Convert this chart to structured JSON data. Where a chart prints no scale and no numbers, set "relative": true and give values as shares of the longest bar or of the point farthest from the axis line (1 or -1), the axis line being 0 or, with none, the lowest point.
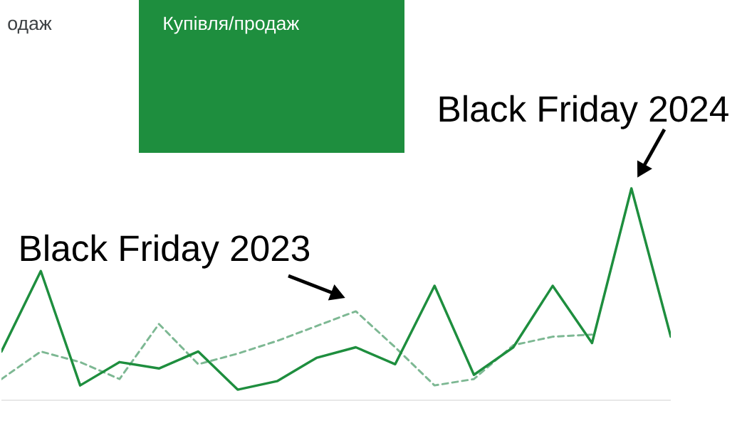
{
  "chart_data": {
    "type": "line",
    "relative": true,
    "categories": [
      null,
      null,
      null,
      null,
      null,
      null,
      null,
      null,
      null,
      null,
      null,
      null,
      null,
      null,
      null,
      null,
      null,
      null
    ],
    "series": [
      {
        "color": "#1e8e3e",
        "line_style": "solid",
        "values": [
          0.23,
          0.61,
          0.07,
          0.18,
          0.15,
          0.23,
          0.05,
          0.09,
          0.2,
          0.25,
          0.17,
          0.54,
          0.12,
          0.25,
          0.54,
          0.27,
          1,
          0.3
        ]
      },
      {
        "color": "#7db893",
        "line_style": "dashed",
        "values": [
          0.1,
          0.23,
          0.18,
          0.1,
          0.36,
          0.17,
          0.22,
          0.28,
          0.35,
          0.42,
          0.25,
          0.07,
          0.1,
          0.26,
          0.3,
          0.31,
          null,
          null
        ]
      }
    ],
    "annotations": [
      "одаж",
      "Купівля/продаж",
      "Black Friday 2023",
      "Black Friday 2024"
    ]
  }
}
